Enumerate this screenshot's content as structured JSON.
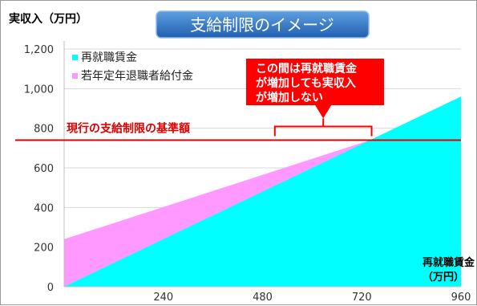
{
  "chart_data": {
    "type": "area",
    "title": "支給制限のイメージ",
    "ylabel": "実収入（万円）",
    "xlabel_line1": "再就職賃金",
    "xlabel_line2": "（万円）",
    "ylim": [
      0,
      1200
    ],
    "xlim": [
      0,
      960
    ],
    "y_ticks": [
      "0",
      "200",
      "400",
      "600",
      "800",
      "1,000",
      "1,200"
    ],
    "y_tick_values": [
      0,
      200,
      400,
      600,
      800,
      1000,
      1200
    ],
    "x_ticks": [
      "240",
      "480",
      "720",
      "960"
    ],
    "x_tick_values": [
      240,
      480,
      720,
      960
    ],
    "legend_position": "top-left",
    "series": [
      {
        "name": "再就職賃金",
        "color": "#00ffff",
        "x": [
          0,
          960
        ],
        "values": [
          0,
          960
        ]
      },
      {
        "name": "若年定年退職者給付金",
        "color": "#ff99ff",
        "x": [
          0,
          740
        ],
        "values": [
          240,
          0
        ]
      }
    ],
    "threshold": {
      "label": "現行の支給制限の基準額",
      "value": 740,
      "color": "#e00000"
    },
    "callout": {
      "lines": [
        "この間は再就職賃金",
        "が増加しても実収入",
        "が増加しない"
      ],
      "range": [
        500,
        740
      ],
      "color": "#ff0000"
    },
    "grid": true
  }
}
